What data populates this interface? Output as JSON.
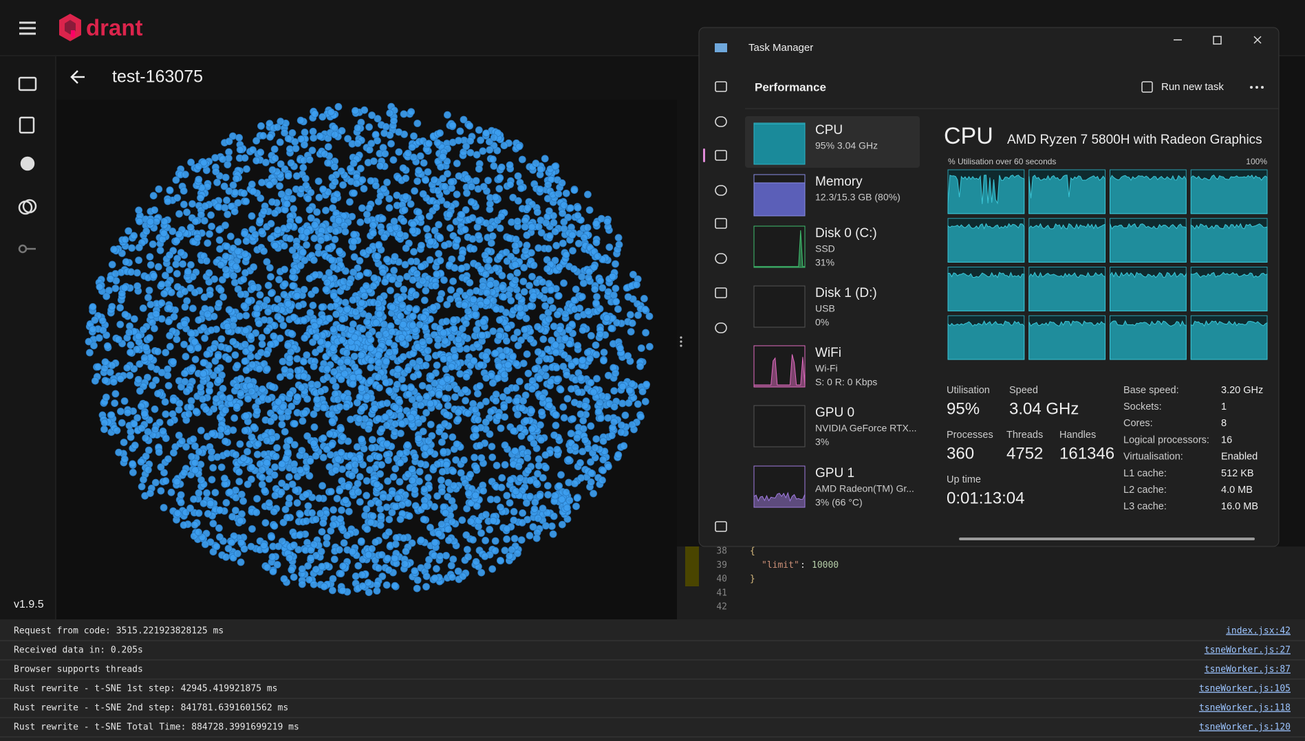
{
  "app": {
    "logo": "drant",
    "version": "v1.9.5",
    "collection": "test-163075"
  },
  "task_manager": {
    "title": "Task Manager",
    "section": "Performance",
    "run_new_task": "Run new task",
    "resources": [
      {
        "name": "CPU",
        "details": [
          "95% 3.04 GHz"
        ]
      },
      {
        "name": "Memory",
        "details": [
          "12.3/15.3 GB (80%)"
        ]
      },
      {
        "name": "Disk 0 (C:)",
        "details": [
          "SSD",
          "31%"
        ]
      },
      {
        "name": "Disk 1 (D:)",
        "details": [
          "USB",
          "0%"
        ]
      },
      {
        "name": "WiFi",
        "details": [
          "Wi-Fi",
          "S: 0 R: 0 Kbps"
        ]
      },
      {
        "name": "GPU 0",
        "details": [
          "NVIDIA GeForce RTX...",
          "3%"
        ]
      },
      {
        "name": "GPU 1",
        "details": [
          "AMD Radeon(TM) Gr...",
          "3% (66 °C)"
        ]
      }
    ],
    "cpu": {
      "heading": "CPU",
      "model": "AMD Ryzen 7 5800H with Radeon Graphics",
      "graph_label": "% Utilisation over 60 seconds",
      "graph_max": "100%",
      "stats": [
        {
          "label": "Utilisation",
          "value": "95%"
        },
        {
          "label": "Speed",
          "value": "3.04 GHz"
        },
        {
          "label": "Processes",
          "value": "360"
        },
        {
          "label": "Threads",
          "value": "4752"
        },
        {
          "label": "Handles",
          "value": "161346"
        },
        {
          "label": "Up time",
          "value": "0:01:13:04"
        }
      ],
      "specs": [
        {
          "label": "Base speed:",
          "value": "3.20 GHz"
        },
        {
          "label": "Sockets:",
          "value": "1"
        },
        {
          "label": "Cores:",
          "value": "8"
        },
        {
          "label": "Logical processors:",
          "value": "16"
        },
        {
          "label": "Virtualisation:",
          "value": "Enabled"
        },
        {
          "label": "L1 cache:",
          "value": "512 KB"
        },
        {
          "label": "L2 cache:",
          "value": "4.0 MB"
        },
        {
          "label": "L3 cache:",
          "value": "16.0 MB"
        }
      ]
    }
  },
  "editor": {
    "lines": [
      {
        "number": "38",
        "text": "{"
      },
      {
        "number": "39",
        "key": "\"limit\"",
        "separator": ":",
        "value": "10000"
      },
      {
        "number": "40",
        "text": "}"
      },
      {
        "number": "41"
      },
      {
        "number": "42"
      }
    ]
  },
  "console": [
    {
      "message": "Request from code: 3515.221923828125 ms",
      "source": "index.jsx:42"
    },
    {
      "message": "Received data in: 0.205s",
      "source": "tsneWorker.js:27"
    },
    {
      "message": "Browser supports threads",
      "source": "tsneWorker.js:87"
    },
    {
      "message": "Rust rewrite - t-SNE 1st step: 42945.419921875 ms",
      "source": "tsneWorker.js:105"
    },
    {
      "message": "Rust rewrite - t-SNE 2nd step: 841781.6391601562 ms",
      "source": "tsneWorker.js:118"
    },
    {
      "message": "Rust rewrite - t-SNE Total Time: 884728.3991699219 ms",
      "source": "tsneWorker.js:120"
    }
  ]
}
